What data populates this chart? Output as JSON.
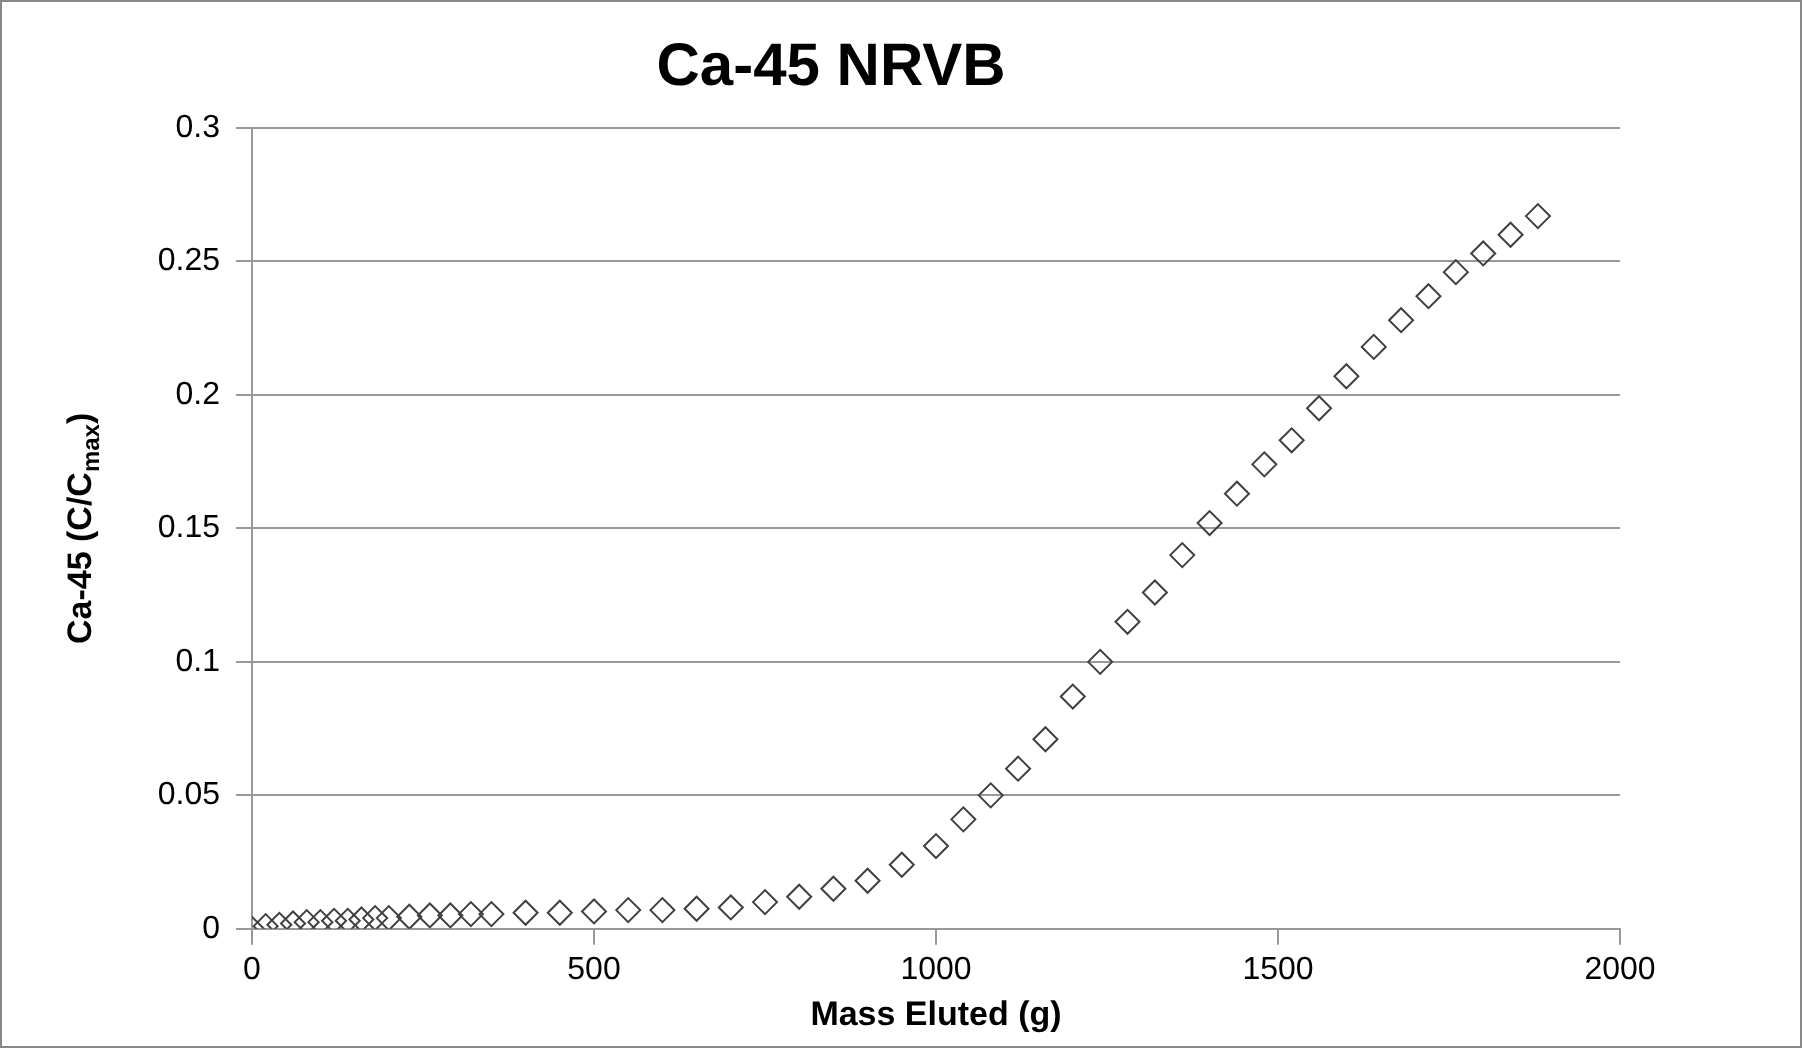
{
  "chart_data": {
    "type": "scatter",
    "title": "Ca-45 NRVB",
    "xlabel": "Mass Eluted (g)",
    "ylabel": "Ca-45 (C/C$_{max}$)",
    "x": [
      0,
      20,
      40,
      60,
      80,
      100,
      120,
      140,
      160,
      180,
      200,
      230,
      260,
      290,
      320,
      350,
      400,
      450,
      500,
      550,
      600,
      650,
      700,
      750,
      800,
      850,
      900,
      950,
      1000,
      1040,
      1080,
      1120,
      1160,
      1200,
      1240,
      1280,
      1320,
      1360,
      1400,
      1440,
      1480,
      1520,
      1560,
      1600,
      1640,
      1680,
      1720,
      1760,
      1800,
      1840,
      1880
    ],
    "series": [
      {
        "color": "#404040",
        "values": [
          0,
          0.001,
          0.0015,
          0.002,
          0.0025,
          0.0025,
          0.003,
          0.003,
          0.0035,
          0.004,
          0.004,
          0.0045,
          0.005,
          0.005,
          0.0055,
          0.0055,
          0.006,
          0.006,
          0.0065,
          0.007,
          0.007,
          0.0075,
          0.008,
          0.01,
          0.012,
          0.015,
          0.018,
          0.024,
          0.031,
          0.041,
          0.05,
          0.06,
          0.071,
          0.087,
          0.1,
          0.115,
          0.126,
          0.14,
          0.152,
          0.163,
          0.174,
          0.183,
          0.195,
          0.207,
          0.218,
          0.228,
          0.237,
          0.246,
          0.253,
          0.26,
          0.267
        ]
      }
    ],
    "xlim": [
      0,
      2000
    ],
    "xticks": [
      0,
      500,
      1000,
      1500,
      2000
    ],
    "ylim": [
      0,
      0.3
    ],
    "yticks": [
      0,
      0.05,
      0.1,
      0.15,
      0.2,
      0.25,
      0.3
    ],
    "grid": "y",
    "legend": false,
    "marker": "diamond"
  }
}
